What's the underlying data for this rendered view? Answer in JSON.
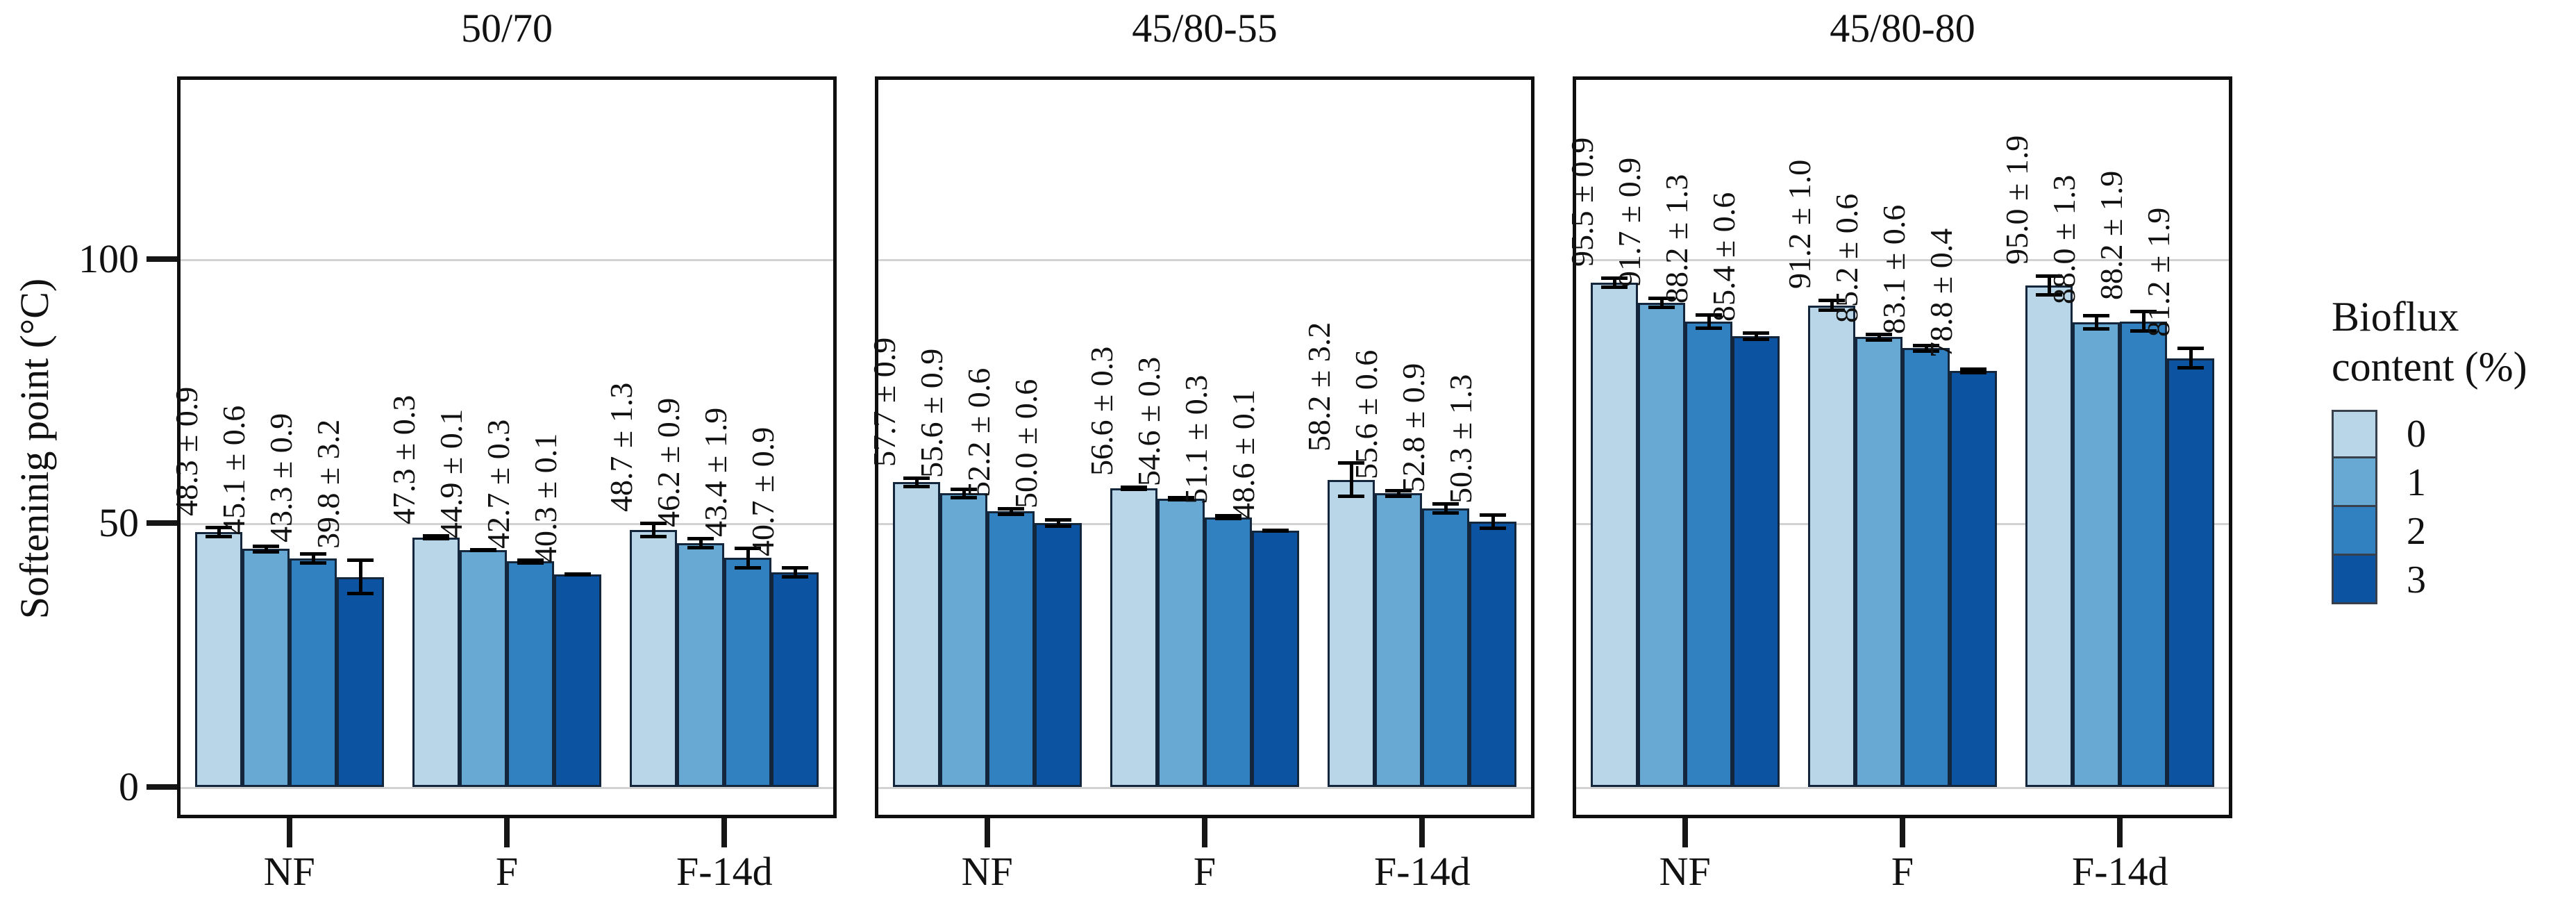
{
  "figure": {
    "background": "#ffffff"
  },
  "y_axis": {
    "title": "Softeninig point (°C)",
    "tick_labels": [
      "0",
      "50",
      "100"
    ],
    "tick_values": [
      0,
      50,
      100
    ]
  },
  "x_axis": {
    "categories": [
      "NF",
      "F",
      "F-14d"
    ]
  },
  "legend": {
    "title_lines": [
      "Bioflux",
      "content (%)"
    ],
    "items": [
      {
        "label": "0",
        "color": "#b9d6e9"
      },
      {
        "label": "1",
        "color": "#68a9d4"
      },
      {
        "label": "2",
        "color": "#3181c0"
      },
      {
        "label": "3",
        "color": "#0c54a2"
      }
    ]
  },
  "chart_data": {
    "type": "bar",
    "title": "",
    "ylabel": "Softeninig point (°C)",
    "xlabel": "",
    "ylim": [
      0,
      135
    ],
    "y_ticks": [
      0,
      50,
      100
    ],
    "grid": "horizontal major gridlines only",
    "legend_position": "right",
    "legend_title": "Bioflux content (%)",
    "series": [
      "0",
      "1",
      "2",
      "3"
    ],
    "series_colors": [
      "#b9d6e9",
      "#68a9d4",
      "#3181c0",
      "#0c54a2"
    ],
    "categories": [
      "NF",
      "F",
      "F-14d"
    ],
    "error_bars": "± shown as whiskers with caps",
    "value_label_format": "value ± error, rotated 90°",
    "panels": [
      {
        "title": "50/70",
        "groups": [
          {
            "category": "NF",
            "values": [
              48.3,
              45.1,
              43.3,
              39.8
            ],
            "errors": [
              0.9,
              0.6,
              0.9,
              3.2
            ]
          },
          {
            "category": "F",
            "values": [
              47.3,
              44.9,
              42.7,
              40.3
            ],
            "errors": [
              0.3,
              0.1,
              0.3,
              0.1
            ]
          },
          {
            "category": "F-14d",
            "values": [
              48.7,
              46.2,
              43.4,
              40.7
            ],
            "errors": [
              1.3,
              0.9,
              1.9,
              0.9
            ]
          }
        ]
      },
      {
        "title": "45/80-55",
        "groups": [
          {
            "category": "NF",
            "values": [
              57.7,
              55.6,
              52.2,
              50.0
            ],
            "errors": [
              0.9,
              0.9,
              0.6,
              0.6
            ]
          },
          {
            "category": "F",
            "values": [
              56.6,
              54.6,
              51.1,
              48.6
            ],
            "errors": [
              0.3,
              0.3,
              0.3,
              0.1
            ]
          },
          {
            "category": "F-14d",
            "values": [
              58.2,
              55.6,
              52.8,
              50.3
            ],
            "errors": [
              3.2,
              0.6,
              0.9,
              1.3
            ]
          }
        ]
      },
      {
        "title": "45/80-80",
        "groups": [
          {
            "category": "NF",
            "values": [
              95.5,
              91.7,
              88.2,
              85.4
            ],
            "errors": [
              0.9,
              0.9,
              1.3,
              0.6
            ]
          },
          {
            "category": "F",
            "values": [
              91.2,
              85.2,
              83.1,
              78.8
            ],
            "errors": [
              1.0,
              0.6,
              0.6,
              0.4
            ]
          },
          {
            "category": "F-14d",
            "values": [
              95.0,
              88.0,
              88.2,
              81.2
            ],
            "errors": [
              1.9,
              1.3,
              1.9,
              1.9
            ]
          }
        ]
      }
    ]
  }
}
